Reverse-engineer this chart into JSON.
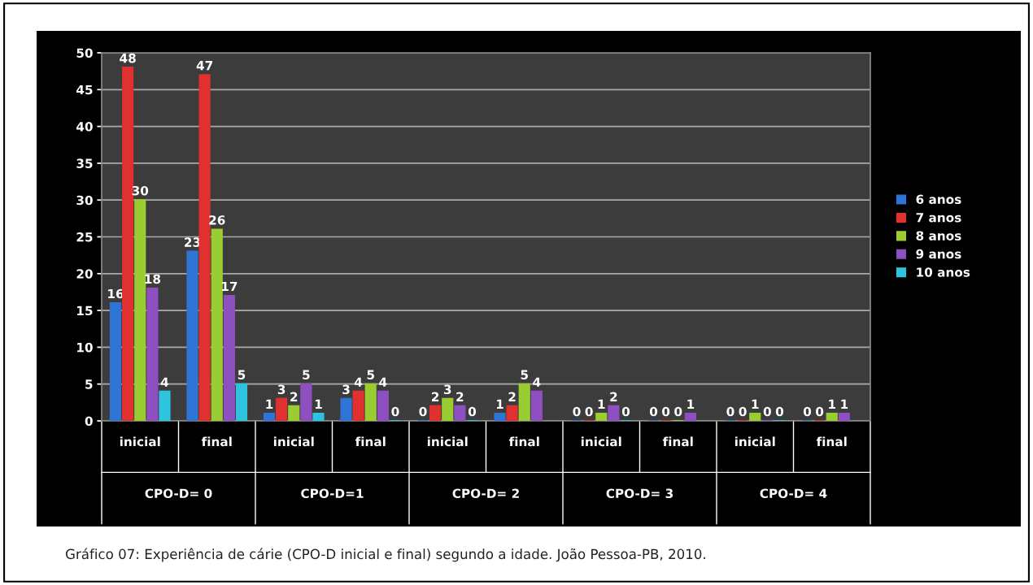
{
  "chart_data": {
    "type": "bar",
    "categories": [
      "inicial",
      "final",
      "inicial",
      "final",
      "inicial",
      "final",
      "inicial",
      "final",
      "inicial",
      "final"
    ],
    "series": [
      {
        "name": "6 anos",
        "color": "#2e75d6",
        "values": [
          16,
          23,
          1,
          3,
          0,
          1,
          0,
          0,
          0,
          0
        ]
      },
      {
        "name": "7 anos",
        "color": "#e03030",
        "values": [
          48,
          47,
          3,
          4,
          2,
          2,
          0,
          0,
          0,
          0
        ]
      },
      {
        "name": "8 anos",
        "color": "#9acd32",
        "values": [
          30,
          26,
          2,
          5,
          3,
          5,
          1,
          0,
          1,
          1
        ]
      },
      {
        "name": "9 anos",
        "color": "#8e4fc0",
        "values": [
          18,
          17,
          5,
          4,
          2,
          4,
          2,
          1,
          0,
          1
        ]
      },
      {
        "name": "10 anos",
        "color": "#2ec4e0",
        "values": [
          4,
          5,
          1,
          0,
          0,
          null,
          0,
          null,
          0,
          null
        ]
      }
    ],
    "ylim": [
      0,
      50
    ],
    "yticks": [
      0,
      5,
      10,
      15,
      20,
      25,
      30,
      35,
      40,
      45,
      50
    ],
    "grid": "y",
    "legend": "right",
    "data_labels": true,
    "annotations": [
      "CPO-D= 0",
      "CPO-D=1",
      "CPO-D= 2",
      "CPO-D= 3",
      "CPO-D= 4",
      "Gráfico 07: Experiência de cárie (CPO-D inicial e final) segundo a idade. João Pessoa-PB, 2010."
    ]
  }
}
